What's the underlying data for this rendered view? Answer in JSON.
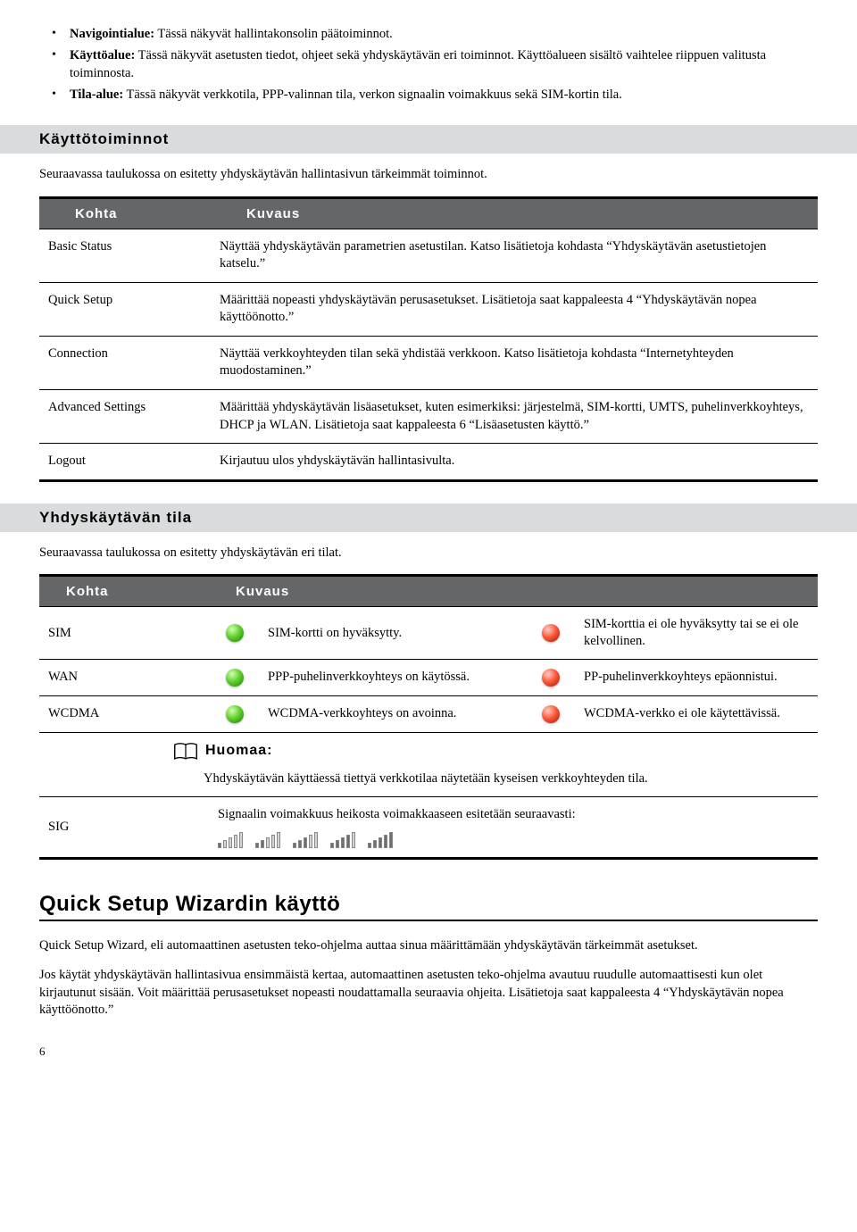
{
  "bullets": [
    {
      "label": "Navigointialue:",
      "text": " Tässä näkyvät hallintakonsolin päätoiminnot."
    },
    {
      "label": "Käyttöalue:",
      "text": " Tässä näkyvät asetusten tiedot, ohjeet sekä yhdyskäytävän eri toiminnot. Käyttöalueen sisältö vaihtelee riippuen valitusta toiminnosta."
    },
    {
      "label": "Tila-alue:",
      "text": " Tässä näkyvät verkkotila, PPP-valinnan tila, verkon signaalin voimakkuus sekä SIM-kortin tila."
    }
  ],
  "sections": {
    "functions": {
      "heading": "Käyttötoiminnot",
      "intro": "Seuraavassa taulukossa on esitetty yhdyskäytävän hallintasivun tärkeimmät toiminnot.",
      "th0": "Kohta",
      "th1": "Kuvaus",
      "rows": [
        {
          "k": "Basic Status",
          "v": "Näyttää yhdyskäytävän parametrien asetustilan. Katso lisätietoja kohdasta “Yhdyskäytävän asetustietojen katselu.”"
        },
        {
          "k": "Quick Setup",
          "v": "Määrittää nopeasti yhdyskäytävän perusasetukset. Lisätietoja saat kappaleesta 4 “Yhdyskäytävän nopea käyttöönotto.”"
        },
        {
          "k": "Connection",
          "v": "Näyttää verkkoyhteyden tilan sekä yhdistää verkkoon. Katso lisätietoja kohdasta “Internetyhteyden muodostaminen.”"
        },
        {
          "k": "Advanced Settings",
          "v": "Määrittää yhdyskäytävän lisäasetukset, kuten esimerkiksi: järjestelmä, SIM-kortti, UMTS, puhelinverkkoyhteys, DHCP ja WLAN. Lisätietoja saat kappaleesta 6 “Lisäasetusten käyttö.”"
        },
        {
          "k": "Logout",
          "v": "Kirjautuu ulos yhdyskäytävän hallintasivulta."
        }
      ]
    },
    "status": {
      "heading": "Yhdyskäytävän tila",
      "intro": "Seuraavassa taulukossa on esitetty yhdyskäytävän eri tilat.",
      "th0": "Kohta",
      "th1": "Kuvaus",
      "rows": [
        {
          "label": "SIM",
          "ok": "SIM-kortti on hyväksytty.",
          "fail": "SIM-korttia ei ole hyväksytty tai se ei ole kelvollinen."
        },
        {
          "label": "WAN",
          "ok": "PPP-puhelinverkkoyhteys on käytössä.",
          "fail": "PP-puhelinverkkoyhteys epäonnistui."
        },
        {
          "label": "WCDMA",
          "ok": "WCDMA-verkkoyhteys on avoinna.",
          "fail": "WCDMA-verkko ei ole käytettävissä."
        }
      ],
      "note_label": "Huomaa:",
      "note_text": "Yhdyskäytävän käyttäessä tiettyä verkkotilaa näytetään kyseisen verkkoyhteyden tila.",
      "sig_label": "SIG",
      "sig_text": "Signaalin voimakkuus heikosta voimakkaaseen esitetään seuraavasti:",
      "sig_levels": [
        1,
        2,
        3,
        4,
        5
      ]
    },
    "wizard": {
      "heading": "Quick Setup Wizardin käyttö",
      "p1": "Quick Setup Wizard, eli automaattinen asetusten teko-ohjelma auttaa sinua määrittämään yhdyskäytävän tärkeimmät asetukset.",
      "p2": "Jos käytät yhdyskäytävän hallintasivua ensimmäistä kertaa, automaattinen asetusten teko-ohjelma avautuu ruudulle automaattisesti kun olet kirjautunut sisään. Voit määrittää perusasetukset nopeasti noudattamalla seuraavia ohjeita. Lisätietoja saat kappaleesta 4 “Yhdyskäytävän nopea käyttöönotto.”"
    }
  },
  "page_number": "6",
  "colors": {
    "header_bg": "#656668",
    "section_bg": "#d9dbdc",
    "green": "#4cc417",
    "red": "#e84118"
  }
}
